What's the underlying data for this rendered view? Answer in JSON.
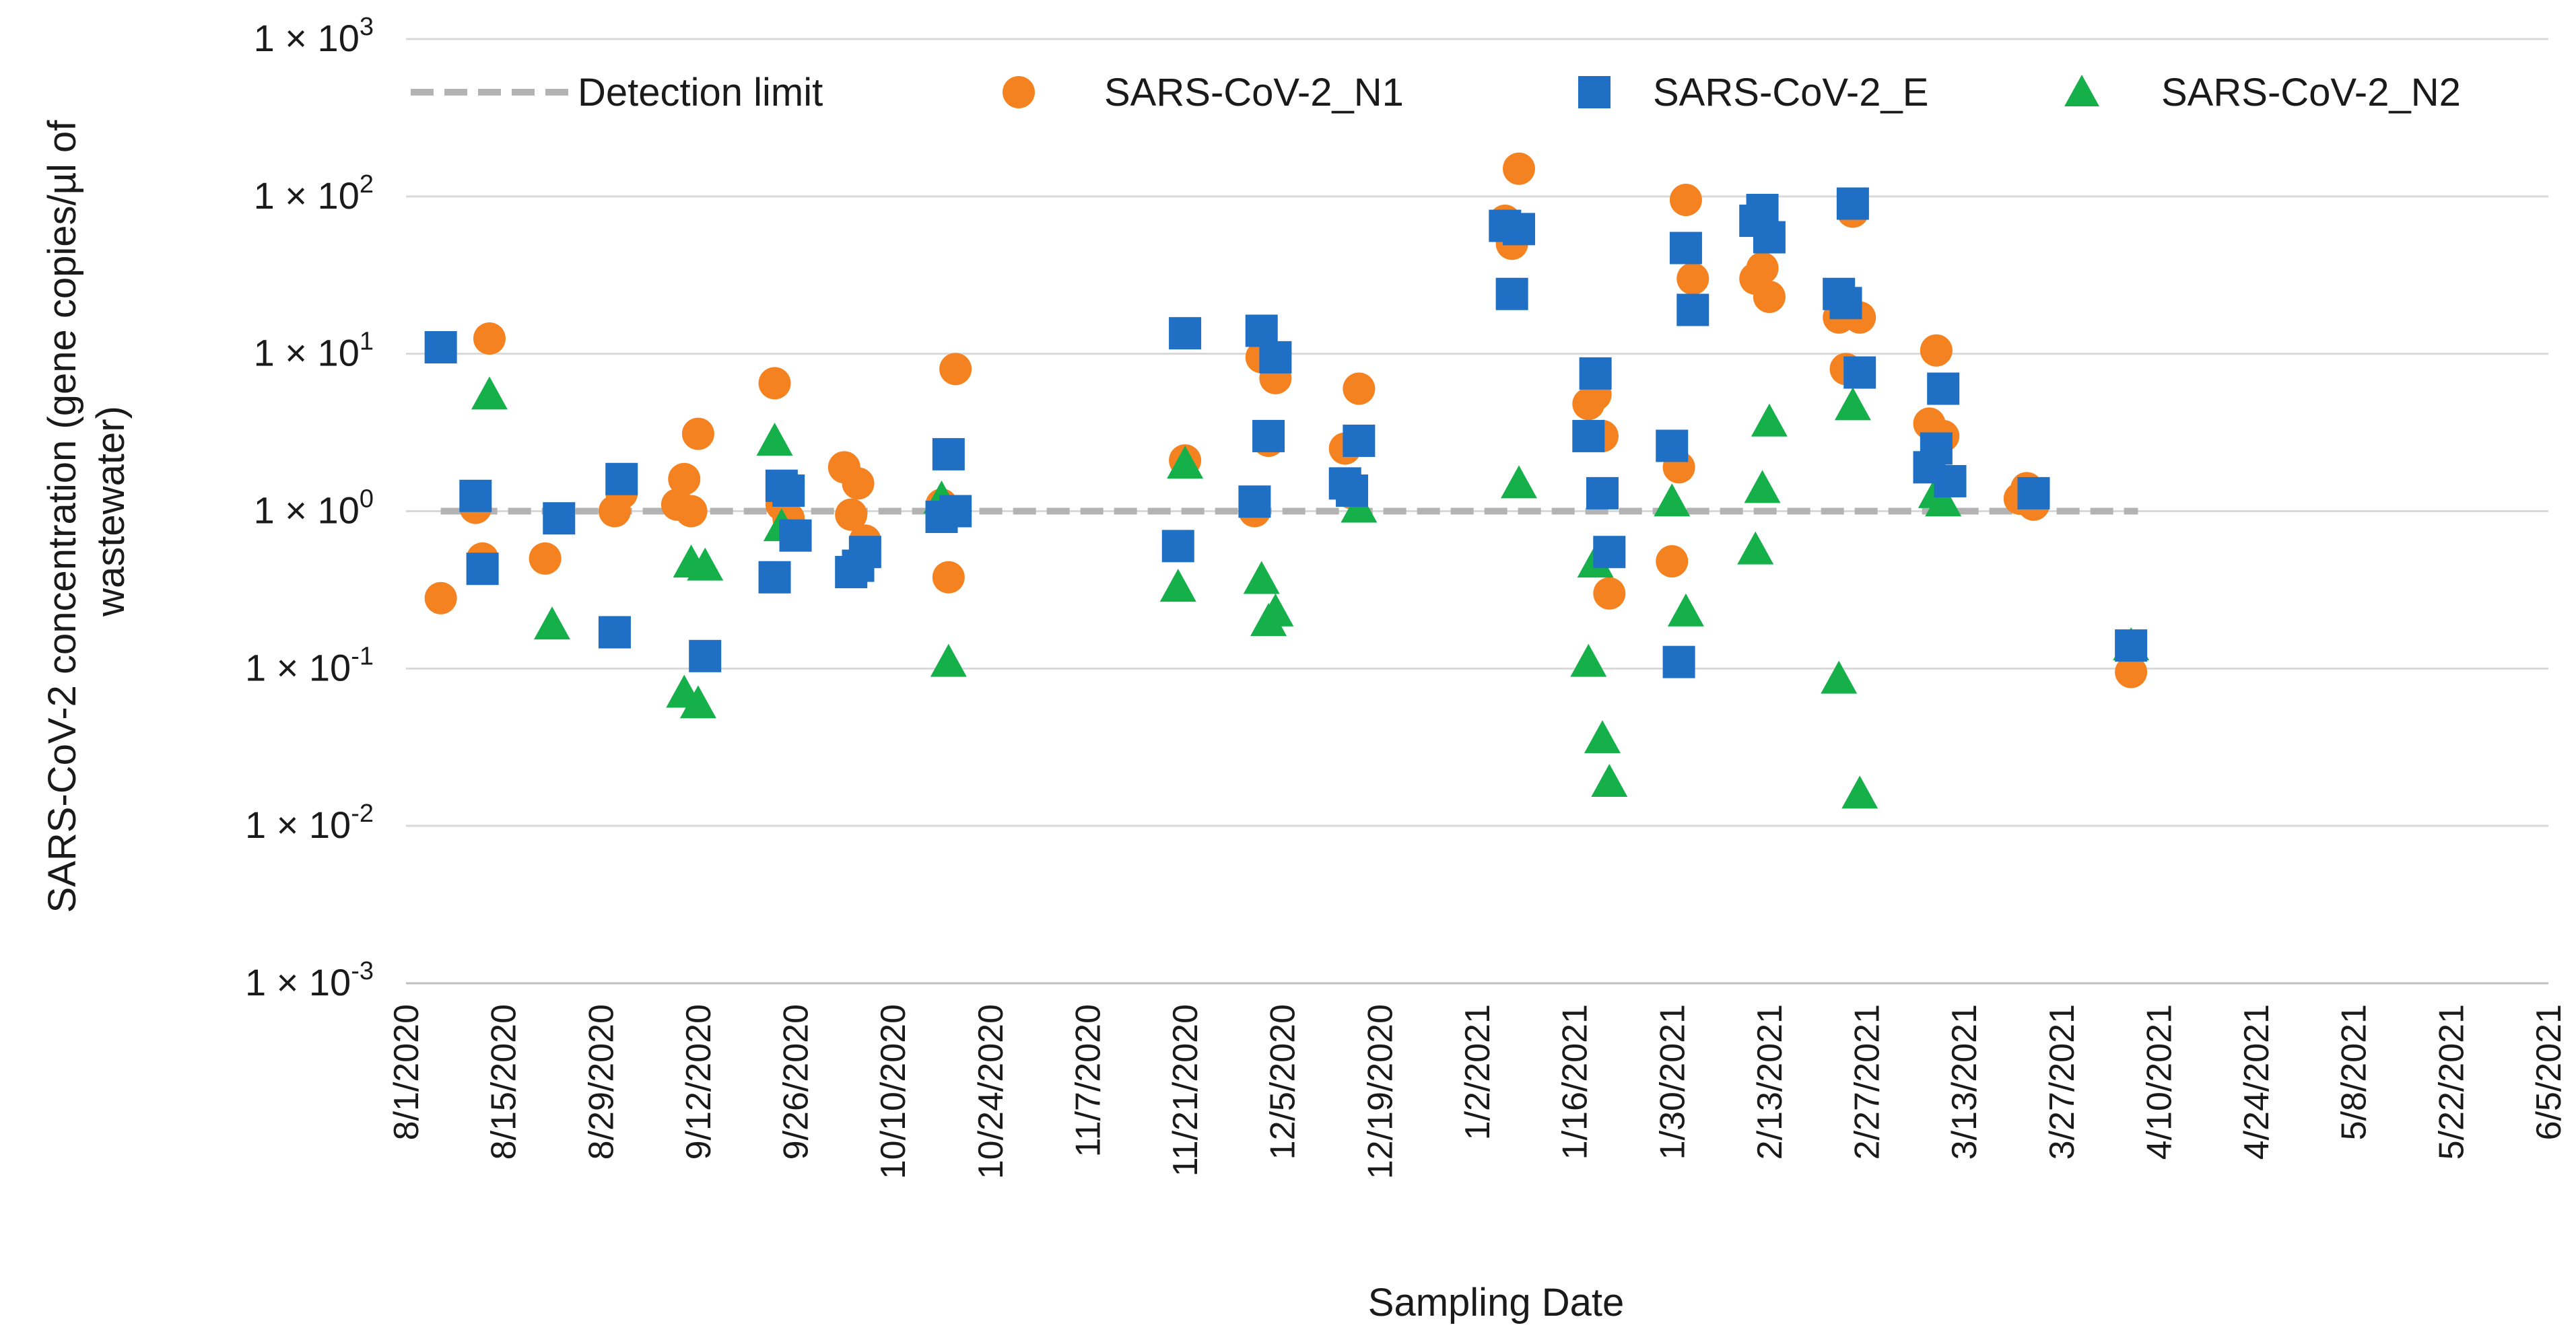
{
  "chart_data": {
    "type": "scatter",
    "title": "",
    "xlabel": "Sampling Date",
    "ylabel_lines": [
      "SARS-CoV-2 concentration (gene copies/µl of",
      "wastewater)"
    ],
    "y_scale": "log",
    "ylim": [
      0.001,
      1000
    ],
    "y_ticks": [
      {
        "value": 1000,
        "base": "1 × 10",
        "exp": "3"
      },
      {
        "value": 100,
        "base": "1 × 10",
        "exp": "2"
      },
      {
        "value": 10,
        "base": "1 × 10",
        "exp": "1"
      },
      {
        "value": 1,
        "base": "1 × 10",
        "exp": "0"
      },
      {
        "value": 0.1,
        "base": "1 × 10",
        "exp": "-1"
      },
      {
        "value": 0.01,
        "base": "1 × 10",
        "exp": "-2"
      },
      {
        "value": 0.001,
        "base": "1 × 10",
        "exp": "-3"
      }
    ],
    "x_ticks": [
      "8/1/2020",
      "8/15/2020",
      "8/29/2020",
      "9/12/2020",
      "9/26/2020",
      "10/10/2020",
      "10/24/2020",
      "11/7/2020",
      "11/21/2020",
      "12/5/2020",
      "12/19/2020",
      "1/2/2021",
      "1/16/2021",
      "1/30/2021",
      "2/13/2021",
      "2/27/2021",
      "3/13/2021",
      "3/27/2021",
      "4/10/2021",
      "4/24/2021",
      "5/8/2021",
      "5/22/2021",
      "6/5/2021"
    ],
    "xlim_days": [
      0,
      308
    ],
    "x_unit": "days since 8/1/2020",
    "detection_limit": {
      "name": "Detection limit",
      "value": 1,
      "x_range": [
        5,
        249
      ],
      "color": "#b3b3b3"
    },
    "legend_position": "top",
    "series": [
      {
        "name": "SARS-CoV-2_N1",
        "marker": "circle",
        "color": "#f58220",
        "points": [
          {
            "x": 5,
            "y": 0.28
          },
          {
            "x": 10,
            "y": 1.05
          },
          {
            "x": 11,
            "y": 0.5
          },
          {
            "x": 12,
            "y": 12.5
          },
          {
            "x": 20,
            "y": 0.5
          },
          {
            "x": 30,
            "y": 1.0
          },
          {
            "x": 31,
            "y": 1.3
          },
          {
            "x": 39,
            "y": 1.1
          },
          {
            "x": 40,
            "y": 1.6
          },
          {
            "x": 41,
            "y": 1.0
          },
          {
            "x": 42,
            "y": 3.1
          },
          {
            "x": 53,
            "y": 6.5
          },
          {
            "x": 54,
            "y": 1.1
          },
          {
            "x": 55,
            "y": 0.9
          },
          {
            "x": 63,
            "y": 1.9
          },
          {
            "x": 64,
            "y": 0.95
          },
          {
            "x": 65,
            "y": 1.5
          },
          {
            "x": 66,
            "y": 0.65
          },
          {
            "x": 77,
            "y": 1.1
          },
          {
            "x": 78,
            "y": 0.38
          },
          {
            "x": 79,
            "y": 8.0
          },
          {
            "x": 112,
            "y": 2.1
          },
          {
            "x": 122,
            "y": 1.0
          },
          {
            "x": 123,
            "y": 9.5
          },
          {
            "x": 124,
            "y": 2.8
          },
          {
            "x": 125,
            "y": 7.0
          },
          {
            "x": 135,
            "y": 2.5
          },
          {
            "x": 136,
            "y": 1.3
          },
          {
            "x": 137,
            "y": 6.0
          },
          {
            "x": 158,
            "y": 70
          },
          {
            "x": 159,
            "y": 50
          },
          {
            "x": 160,
            "y": 150
          },
          {
            "x": 170,
            "y": 4.8
          },
          {
            "x": 171,
            "y": 5.5
          },
          {
            "x": 172,
            "y": 3.0
          },
          {
            "x": 173,
            "y": 0.3
          },
          {
            "x": 182,
            "y": 0.48
          },
          {
            "x": 183,
            "y": 1.9
          },
          {
            "x": 184,
            "y": 95
          },
          {
            "x": 185,
            "y": 30
          },
          {
            "x": 194,
            "y": 30
          },
          {
            "x": 195,
            "y": 35
          },
          {
            "x": 196,
            "y": 23
          },
          {
            "x": 206,
            "y": 17
          },
          {
            "x": 207,
            "y": 8.0
          },
          {
            "x": 208,
            "y": 80
          },
          {
            "x": 209,
            "y": 17
          },
          {
            "x": 219,
            "y": 3.6
          },
          {
            "x": 220,
            "y": 10.5
          },
          {
            "x": 221,
            "y": 3.0
          },
          {
            "x": 232,
            "y": 1.2
          },
          {
            "x": 233,
            "y": 1.4
          },
          {
            "x": 234,
            "y": 1.1
          },
          {
            "x": 248,
            "y": 0.095
          }
        ]
      },
      {
        "name": "SARS-CoV-2_E",
        "marker": "square",
        "color": "#1f6fc5",
        "points": [
          {
            "x": 5,
            "y": 11.0
          },
          {
            "x": 10,
            "y": 1.25
          },
          {
            "x": 11,
            "y": 0.43
          },
          {
            "x": 22,
            "y": 0.9
          },
          {
            "x": 30,
            "y": 0.17
          },
          {
            "x": 31,
            "y": 1.6
          },
          {
            "x": 43,
            "y": 0.12
          },
          {
            "x": 53,
            "y": 0.38
          },
          {
            "x": 54,
            "y": 1.45
          },
          {
            "x": 55,
            "y": 1.35
          },
          {
            "x": 56,
            "y": 0.7
          },
          {
            "x": 64,
            "y": 0.41
          },
          {
            "x": 65,
            "y": 0.45
          },
          {
            "x": 66,
            "y": 0.55
          },
          {
            "x": 77,
            "y": 0.92
          },
          {
            "x": 78,
            "y": 2.3
          },
          {
            "x": 79,
            "y": 1.0
          },
          {
            "x": 111,
            "y": 0.6
          },
          {
            "x": 112,
            "y": 13.5
          },
          {
            "x": 122,
            "y": 1.15
          },
          {
            "x": 123,
            "y": 14.0
          },
          {
            "x": 124,
            "y": 3.0
          },
          {
            "x": 125,
            "y": 9.5
          },
          {
            "x": 135,
            "y": 1.5
          },
          {
            "x": 136,
            "y": 1.35
          },
          {
            "x": 137,
            "y": 2.8
          },
          {
            "x": 158,
            "y": 65
          },
          {
            "x": 159,
            "y": 24
          },
          {
            "x": 160,
            "y": 62
          },
          {
            "x": 170,
            "y": 3.0
          },
          {
            "x": 171,
            "y": 7.5
          },
          {
            "x": 172,
            "y": 1.3
          },
          {
            "x": 173,
            "y": 0.55
          },
          {
            "x": 182,
            "y": 2.6
          },
          {
            "x": 183,
            "y": 0.11
          },
          {
            "x": 184,
            "y": 47
          },
          {
            "x": 185,
            "y": 19
          },
          {
            "x": 194,
            "y": 70
          },
          {
            "x": 195,
            "y": 82
          },
          {
            "x": 196,
            "y": 55
          },
          {
            "x": 206,
            "y": 24
          },
          {
            "x": 207,
            "y": 21
          },
          {
            "x": 208,
            "y": 90
          },
          {
            "x": 209,
            "y": 7.6
          },
          {
            "x": 219,
            "y": 1.9
          },
          {
            "x": 220,
            "y": 2.5
          },
          {
            "x": 221,
            "y": 6.0
          },
          {
            "x": 222,
            "y": 1.55
          },
          {
            "x": 234,
            "y": 1.3
          },
          {
            "x": 248,
            "y": 0.14
          }
        ]
      },
      {
        "name": "SARS-CoV-2_N2",
        "marker": "triangle",
        "color": "#15b04a",
        "points": [
          {
            "x": 12,
            "y": 5.5
          },
          {
            "x": 21,
            "y": 0.19
          },
          {
            "x": 40,
            "y": 0.07
          },
          {
            "x": 41,
            "y": 0.47
          },
          {
            "x": 42,
            "y": 0.06
          },
          {
            "x": 43,
            "y": 0.45
          },
          {
            "x": 53,
            "y": 2.8
          },
          {
            "x": 54,
            "y": 0.8
          },
          {
            "x": 77,
            "y": 1.2
          },
          {
            "x": 78,
            "y": 0.11
          },
          {
            "x": 111,
            "y": 0.33
          },
          {
            "x": 112,
            "y": 2.0
          },
          {
            "x": 123,
            "y": 0.37
          },
          {
            "x": 124,
            "y": 0.2
          },
          {
            "x": 125,
            "y": 0.23
          },
          {
            "x": 137,
            "y": 1.05
          },
          {
            "x": 160,
            "y": 1.5
          },
          {
            "x": 170,
            "y": 0.11
          },
          {
            "x": 171,
            "y": 0.47
          },
          {
            "x": 172,
            "y": 0.036
          },
          {
            "x": 173,
            "y": 0.019
          },
          {
            "x": 182,
            "y": 1.15
          },
          {
            "x": 184,
            "y": 0.23
          },
          {
            "x": 194,
            "y": 0.57
          },
          {
            "x": 195,
            "y": 1.4
          },
          {
            "x": 196,
            "y": 3.7
          },
          {
            "x": 206,
            "y": 0.086
          },
          {
            "x": 208,
            "y": 4.7
          },
          {
            "x": 209,
            "y": 0.016
          },
          {
            "x": 220,
            "y": 1.3
          },
          {
            "x": 221,
            "y": 1.15
          },
          {
            "x": 248,
            "y": 0.14
          }
        ]
      }
    ]
  }
}
